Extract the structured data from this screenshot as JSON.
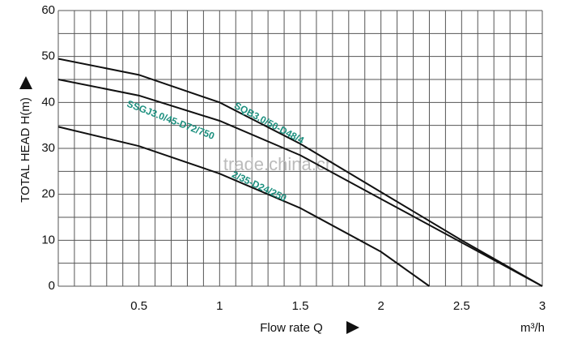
{
  "chart_data": {
    "type": "line",
    "x_label": "Flow rate Q",
    "x_unit": "m³/h",
    "y_label": "TOTAL HEAD H(m)",
    "watermark": "trade.china.cn",
    "xlim": [
      0,
      3
    ],
    "xticks": [
      0.5,
      1,
      1.5,
      2,
      2.5,
      3
    ],
    "ylim": [
      0,
      60
    ],
    "yticks": [
      0,
      10,
      20,
      30,
      40,
      50,
      60
    ],
    "grid": true,
    "label_color": "#1b8f7e",
    "series": [
      {
        "name": "SQB3.0/50-D48/4",
        "color": "#111111",
        "x": [
          0,
          0.5,
          1,
          1.5,
          2,
          2.5,
          3
        ],
        "values": [
          49.5,
          46,
          40,
          31,
          20.5,
          10,
          0
        ]
      },
      {
        "name": "SSGJ3.0/45-D72/750",
        "color": "#111111",
        "x": [
          0,
          0.5,
          1,
          1.5,
          2,
          2.5,
          3
        ],
        "values": [
          45,
          41.5,
          36,
          28.5,
          19,
          9.5,
          0
        ]
      },
      {
        "name": "2/35-D24/250",
        "color": "#111111",
        "x": [
          0,
          0.5,
          1,
          1.5,
          2,
          2.3
        ],
        "values": [
          34.7,
          30.5,
          24.5,
          17,
          7.5,
          0
        ]
      }
    ]
  }
}
